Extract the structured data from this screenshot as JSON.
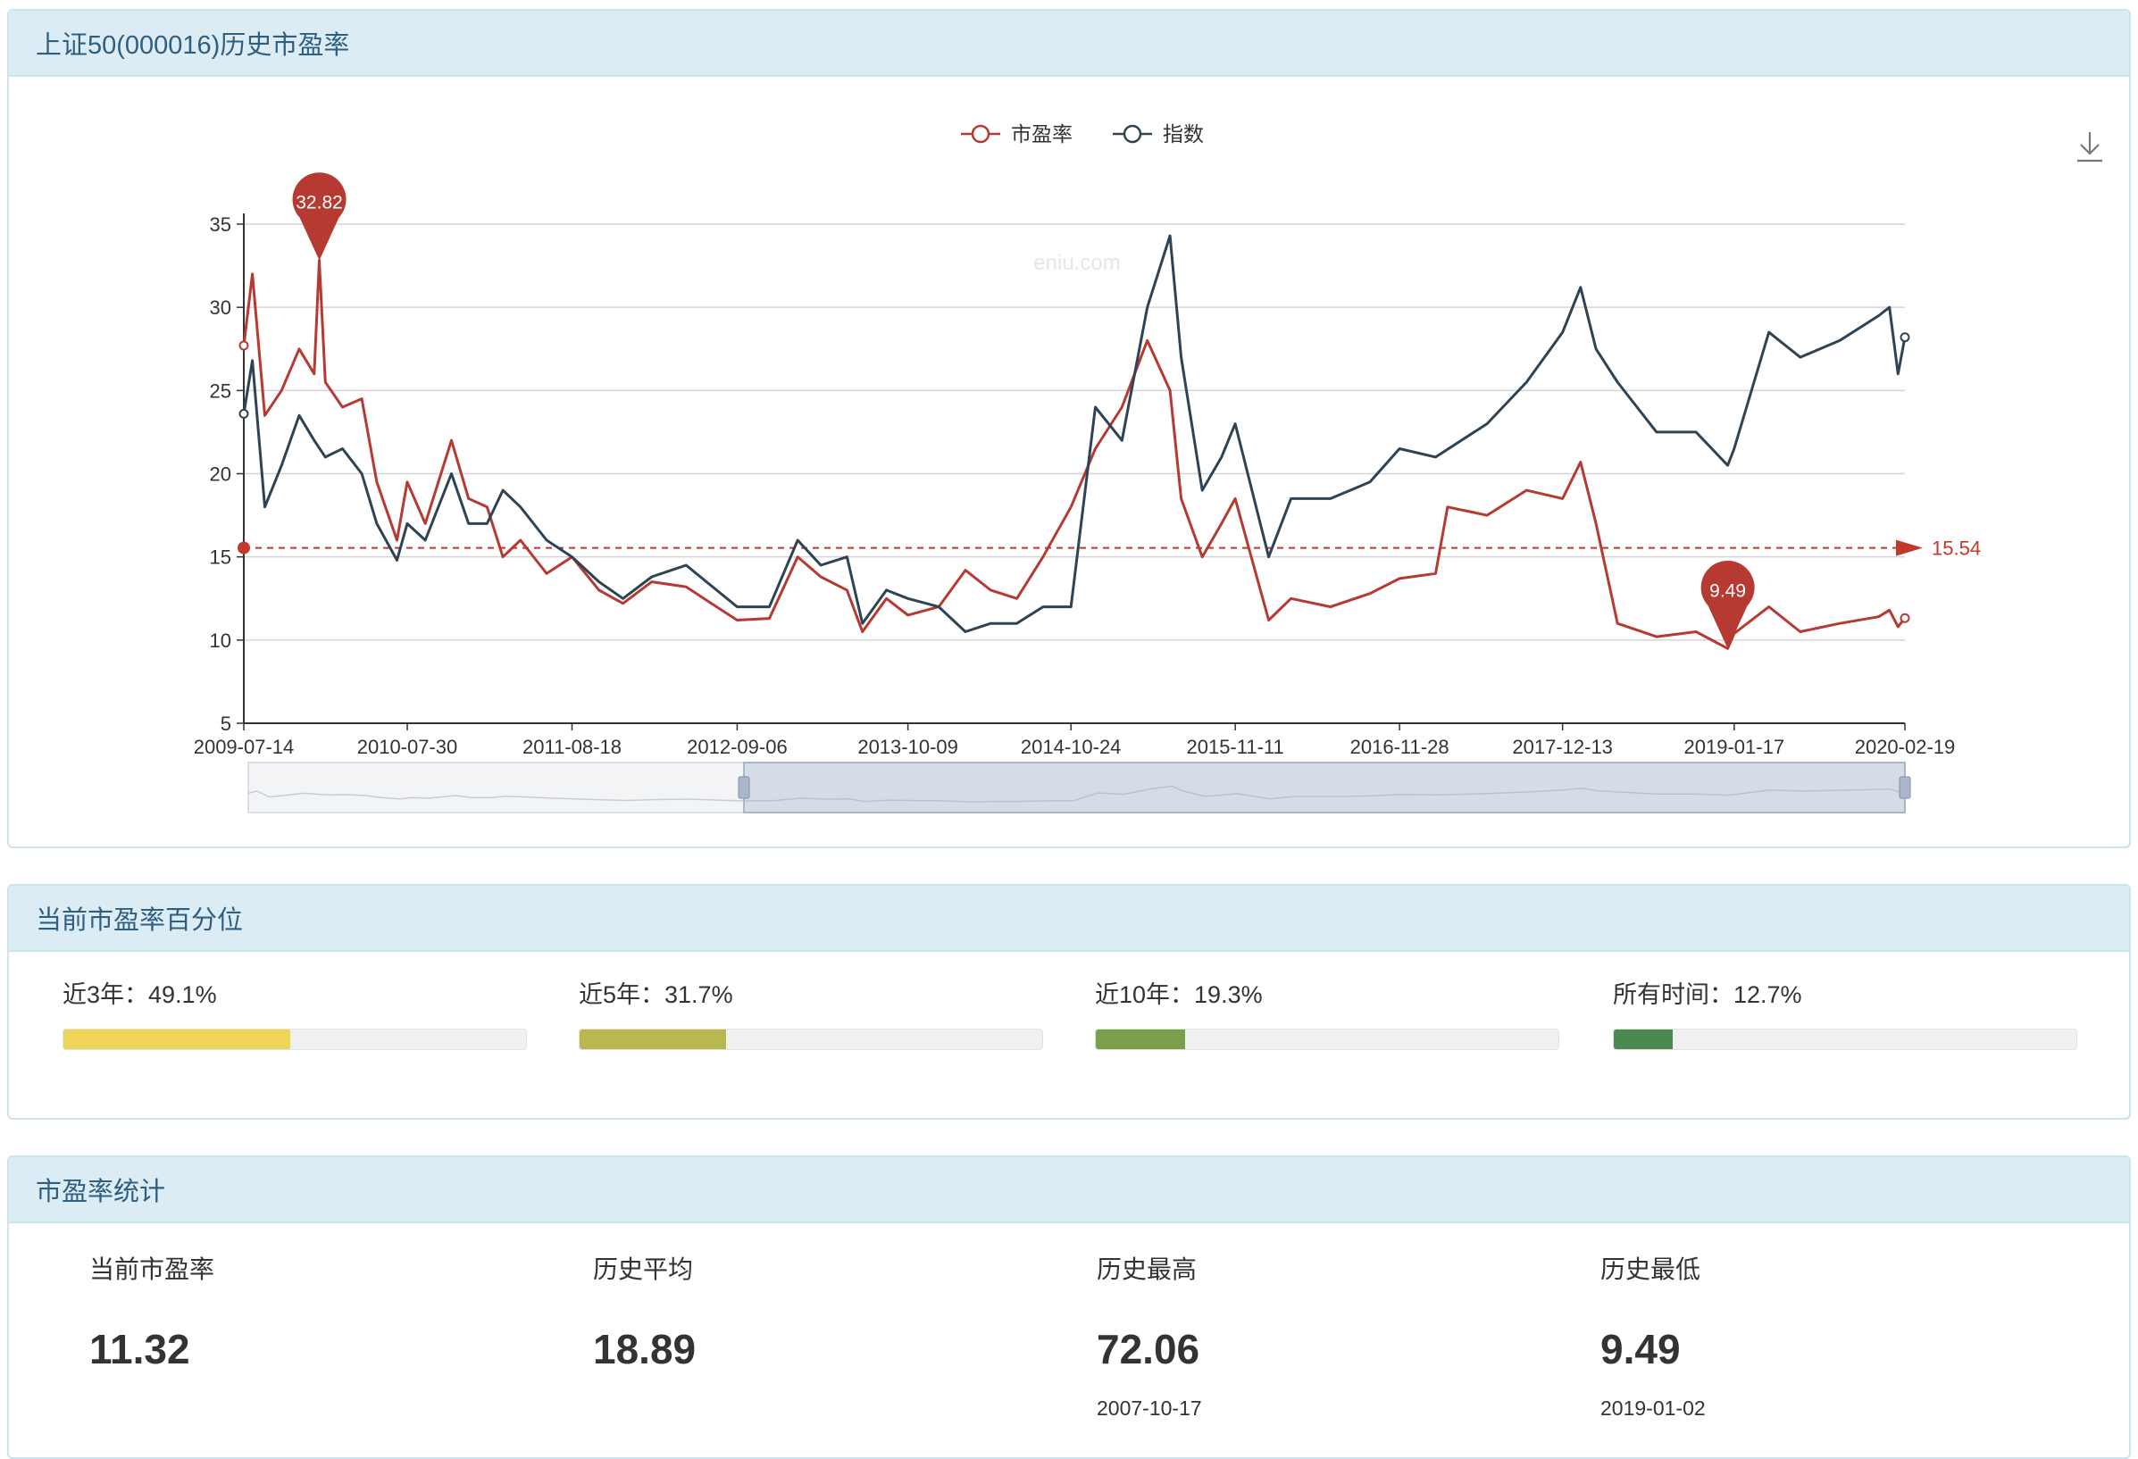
{
  "panel_chart": {
    "title": "上证50(000016)历史市盈率"
  },
  "panel_percentile": {
    "title": "当前市盈率百分位",
    "items": [
      {
        "label": "近3年：49.1%",
        "value": 0.491,
        "color": "#efd55a"
      },
      {
        "label": "近5年：31.7%",
        "value": 0.317,
        "color": "#b8b84e"
      },
      {
        "label": "近10年：19.3%",
        "value": 0.193,
        "color": "#7aa14a"
      },
      {
        "label": "所有时间：12.7%",
        "value": 0.127,
        "color": "#4a8a50"
      }
    ]
  },
  "panel_stats": {
    "title": "市盈率统计",
    "items": [
      {
        "label": "当前市盈率",
        "value": "11.32",
        "date": ""
      },
      {
        "label": "历史平均",
        "value": "18.89",
        "date": ""
      },
      {
        "label": "历史最高",
        "value": "72.06",
        "date": "2007-10-17"
      },
      {
        "label": "历史最低",
        "value": "9.49",
        "date": "2019-01-02"
      }
    ]
  },
  "chart_data": {
    "type": "line",
    "watermark": "eniu.com",
    "ylim": [
      5,
      35
    ],
    "yticks": [
      5,
      10,
      15,
      20,
      25,
      30,
      35
    ],
    "xlabels": [
      "2009-07-14",
      "2010-07-30",
      "2011-08-18",
      "2012-09-06",
      "2013-10-09",
      "2014-10-24",
      "2015-11-11",
      "2016-11-28",
      "2017-12-13",
      "2019-01-17",
      "2020-02-19"
    ],
    "x_start": "2009-07-14",
    "x_end": "2020-02-19",
    "series": [
      {
        "name": "市盈率",
        "color": "#b73a32",
        "points": [
          [
            "2009-07-14",
            27.7
          ],
          [
            "2009-08-03",
            32.0
          ],
          [
            "2009-09-01",
            23.5
          ],
          [
            "2009-10-10",
            25.0
          ],
          [
            "2009-11-20",
            27.5
          ],
          [
            "2009-12-25",
            26.0
          ],
          [
            "2010-01-06",
            32.82
          ],
          [
            "2010-01-20",
            25.5
          ],
          [
            "2010-03-01",
            24.0
          ],
          [
            "2010-04-15",
            24.5
          ],
          [
            "2010-05-20",
            19.5
          ],
          [
            "2010-07-06",
            16.0
          ],
          [
            "2010-07-30",
            19.5
          ],
          [
            "2010-09-10",
            17.0
          ],
          [
            "2010-11-10",
            22.0
          ],
          [
            "2010-12-20",
            18.5
          ],
          [
            "2011-02-01",
            18.0
          ],
          [
            "2011-03-10",
            15.0
          ],
          [
            "2011-04-20",
            16.0
          ],
          [
            "2011-06-20",
            14.0
          ],
          [
            "2011-08-18",
            15.0
          ],
          [
            "2011-10-20",
            13.0
          ],
          [
            "2011-12-15",
            12.2
          ],
          [
            "2012-02-20",
            13.5
          ],
          [
            "2012-05-10",
            13.2
          ],
          [
            "2012-07-20",
            12.0
          ],
          [
            "2012-09-06",
            11.2
          ],
          [
            "2012-11-20",
            11.3
          ],
          [
            "2013-01-25",
            15.0
          ],
          [
            "2013-03-20",
            13.8
          ],
          [
            "2013-05-20",
            13.0
          ],
          [
            "2013-06-25",
            10.5
          ],
          [
            "2013-08-20",
            12.5
          ],
          [
            "2013-10-09",
            11.5
          ],
          [
            "2013-12-20",
            12.0
          ],
          [
            "2014-02-20",
            14.2
          ],
          [
            "2014-04-20",
            13.0
          ],
          [
            "2014-06-20",
            12.5
          ],
          [
            "2014-08-20",
            15.0
          ],
          [
            "2014-10-24",
            18.0
          ],
          [
            "2014-12-20",
            21.5
          ],
          [
            "2015-02-20",
            24.0
          ],
          [
            "2015-04-20",
            28.0
          ],
          [
            "2015-06-12",
            25.0
          ],
          [
            "2015-07-08",
            18.5
          ],
          [
            "2015-08-26",
            15.0
          ],
          [
            "2015-10-10",
            17.0
          ],
          [
            "2015-11-11",
            18.5
          ],
          [
            "2016-01-28",
            11.2
          ],
          [
            "2016-03-20",
            12.5
          ],
          [
            "2016-06-20",
            12.0
          ],
          [
            "2016-09-20",
            12.8
          ],
          [
            "2016-11-28",
            13.7
          ],
          [
            "2017-02-20",
            14.0
          ],
          [
            "2017-03-20",
            18.0
          ],
          [
            "2017-06-20",
            17.5
          ],
          [
            "2017-09-20",
            19.0
          ],
          [
            "2017-12-13",
            18.5
          ],
          [
            "2018-01-24",
            20.7
          ],
          [
            "2018-03-01",
            17.0
          ],
          [
            "2018-04-20",
            11.0
          ],
          [
            "2018-07-20",
            10.2
          ],
          [
            "2018-10-20",
            10.5
          ],
          [
            "2019-01-02",
            9.49
          ],
          [
            "2019-01-17",
            10.4
          ],
          [
            "2019-04-08",
            12.0
          ],
          [
            "2019-06-20",
            10.5
          ],
          [
            "2019-09-20",
            11.0
          ],
          [
            "2019-12-20",
            11.4
          ],
          [
            "2020-01-14",
            11.8
          ],
          [
            "2020-02-03",
            10.8
          ],
          [
            "2020-02-19",
            11.32
          ]
        ]
      },
      {
        "name": "指数",
        "color": "#2e4454",
        "points": [
          [
            "2009-07-14",
            23.6
          ],
          [
            "2009-08-03",
            26.8
          ],
          [
            "2009-09-01",
            18.0
          ],
          [
            "2009-10-10",
            20.5
          ],
          [
            "2009-11-20",
            23.5
          ],
          [
            "2009-12-25",
            22.0
          ],
          [
            "2010-01-20",
            21.0
          ],
          [
            "2010-03-01",
            21.5
          ],
          [
            "2010-04-15",
            20.0
          ],
          [
            "2010-05-20",
            17.0
          ],
          [
            "2010-07-06",
            14.8
          ],
          [
            "2010-07-30",
            17.0
          ],
          [
            "2010-09-10",
            16.0
          ],
          [
            "2010-11-10",
            20.0
          ],
          [
            "2010-12-20",
            17.0
          ],
          [
            "2011-02-01",
            17.0
          ],
          [
            "2011-03-10",
            19.0
          ],
          [
            "2011-04-20",
            18.0
          ],
          [
            "2011-06-20",
            16.0
          ],
          [
            "2011-08-18",
            15.0
          ],
          [
            "2011-10-20",
            13.5
          ],
          [
            "2011-12-15",
            12.5
          ],
          [
            "2012-02-20",
            13.8
          ],
          [
            "2012-05-10",
            14.5
          ],
          [
            "2012-07-20",
            13.0
          ],
          [
            "2012-09-06",
            12.0
          ],
          [
            "2012-11-20",
            12.0
          ],
          [
            "2013-01-25",
            16.0
          ],
          [
            "2013-03-20",
            14.5
          ],
          [
            "2013-05-20",
            15.0
          ],
          [
            "2013-06-25",
            11.0
          ],
          [
            "2013-08-20",
            13.0
          ],
          [
            "2013-10-09",
            12.5
          ],
          [
            "2013-12-20",
            12.0
          ],
          [
            "2014-02-20",
            10.5
          ],
          [
            "2014-04-20",
            11.0
          ],
          [
            "2014-06-20",
            11.0
          ],
          [
            "2014-08-20",
            12.0
          ],
          [
            "2014-10-24",
            12.0
          ],
          [
            "2014-12-20",
            24.0
          ],
          [
            "2015-02-20",
            22.0
          ],
          [
            "2015-04-20",
            30.0
          ],
          [
            "2015-06-12",
            34.3
          ],
          [
            "2015-07-08",
            27.0
          ],
          [
            "2015-08-26",
            19.0
          ],
          [
            "2015-10-10",
            21.0
          ],
          [
            "2015-11-11",
            23.0
          ],
          [
            "2016-01-28",
            15.0
          ],
          [
            "2016-03-20",
            18.5
          ],
          [
            "2016-06-20",
            18.5
          ],
          [
            "2016-09-20",
            19.5
          ],
          [
            "2016-11-28",
            21.5
          ],
          [
            "2017-02-20",
            21.0
          ],
          [
            "2017-06-20",
            23.0
          ],
          [
            "2017-09-20",
            25.5
          ],
          [
            "2017-12-13",
            28.5
          ],
          [
            "2018-01-24",
            31.2
          ],
          [
            "2018-03-01",
            27.5
          ],
          [
            "2018-04-20",
            25.5
          ],
          [
            "2018-07-20",
            22.5
          ],
          [
            "2018-10-20",
            22.5
          ],
          [
            "2019-01-02",
            20.5
          ],
          [
            "2019-01-17",
            21.5
          ],
          [
            "2019-04-08",
            28.5
          ],
          [
            "2019-06-20",
            27.0
          ],
          [
            "2019-09-20",
            28.0
          ],
          [
            "2019-12-20",
            29.5
          ],
          [
            "2020-01-14",
            30.0
          ],
          [
            "2020-02-03",
            26.0
          ],
          [
            "2020-02-19",
            28.2
          ]
        ]
      }
    ],
    "markers": [
      {
        "label": "32.82",
        "date": "2010-01-06",
        "value": 32.82,
        "kind": "max"
      },
      {
        "label": "9.49",
        "date": "2019-01-02",
        "value": 9.49,
        "kind": "min"
      }
    ],
    "average_line": {
      "value": 15.54,
      "label": "15.54"
    },
    "legend": {
      "position": "top-center",
      "items": [
        "市盈率",
        "指数"
      ]
    },
    "grid": true,
    "datazoom": true,
    "toolbox": "download-icon"
  }
}
